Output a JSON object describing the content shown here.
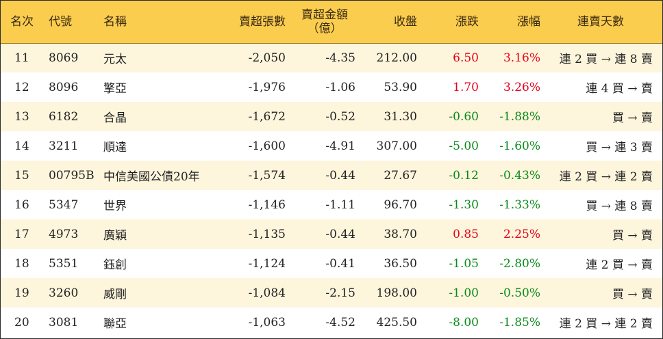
{
  "headers": {
    "rank": "名次",
    "code": "代號",
    "name": "名稱",
    "net_sell_shares": "賣超張數",
    "net_sell_amount": "賣超金額",
    "net_sell_amount_unit": "（億）",
    "close": "收盤",
    "change": "漲跌",
    "pct": "漲幅",
    "streak": "連賣天數"
  },
  "colors": {
    "header_bg": "#fbcd4f",
    "odd_row_bg": "#fdf5dc",
    "up": "#e8001c",
    "down": "#0a8a1a"
  },
  "rows": [
    {
      "rank": "11",
      "code": "8069",
      "name": "元太",
      "shares": "-2,050",
      "amount": "-4.35",
      "close": "212.00",
      "change": "6.50",
      "pct": "3.16%",
      "dir": "up",
      "streak": "連 2 買 → 連 8 賣"
    },
    {
      "rank": "12",
      "code": "8096",
      "name": "擎亞",
      "shares": "-1,976",
      "amount": "-1.06",
      "close": "53.90",
      "change": "1.70",
      "pct": "3.26%",
      "dir": "up",
      "streak": "連 4 買 → 賣"
    },
    {
      "rank": "13",
      "code": "6182",
      "name": "合晶",
      "shares": "-1,672",
      "amount": "-0.52",
      "close": "31.30",
      "change": "-0.60",
      "pct": "-1.88%",
      "dir": "down",
      "streak": "買 → 賣"
    },
    {
      "rank": "14",
      "code": "3211",
      "name": "順達",
      "shares": "-1,600",
      "amount": "-4.91",
      "close": "307.00",
      "change": "-5.00",
      "pct": "-1.60%",
      "dir": "down",
      "streak": "買 → 連 3 賣"
    },
    {
      "rank": "15",
      "code": "00795B",
      "name": "中信美國公債20年",
      "shares": "-1,574",
      "amount": "-0.44",
      "close": "27.67",
      "change": "-0.12",
      "pct": "-0.43%",
      "dir": "down",
      "streak": "連 2 買 → 連 2 賣"
    },
    {
      "rank": "16",
      "code": "5347",
      "name": "世界",
      "shares": "-1,146",
      "amount": "-1.11",
      "close": "96.70",
      "change": "-1.30",
      "pct": "-1.33%",
      "dir": "down",
      "streak": "買 → 連 8 賣"
    },
    {
      "rank": "17",
      "code": "4973",
      "name": "廣穎",
      "shares": "-1,135",
      "amount": "-0.44",
      "close": "38.70",
      "change": "0.85",
      "pct": "2.25%",
      "dir": "up",
      "streak": "買 → 賣"
    },
    {
      "rank": "18",
      "code": "5351",
      "name": "鈺創",
      "shares": "-1,124",
      "amount": "-0.41",
      "close": "36.50",
      "change": "-1.05",
      "pct": "-2.80%",
      "dir": "down",
      "streak": "連 2 買 → 賣"
    },
    {
      "rank": "19",
      "code": "3260",
      "name": "威剛",
      "shares": "-1,084",
      "amount": "-2.15",
      "close": "198.00",
      "change": "-1.00",
      "pct": "-0.50%",
      "dir": "down",
      "streak": "買 → 賣"
    },
    {
      "rank": "20",
      "code": "3081",
      "name": "聯亞",
      "shares": "-1,063",
      "amount": "-4.52",
      "close": "425.50",
      "change": "-8.00",
      "pct": "-1.85%",
      "dir": "down",
      "streak": "連 2 買 → 連 2 賣"
    }
  ]
}
